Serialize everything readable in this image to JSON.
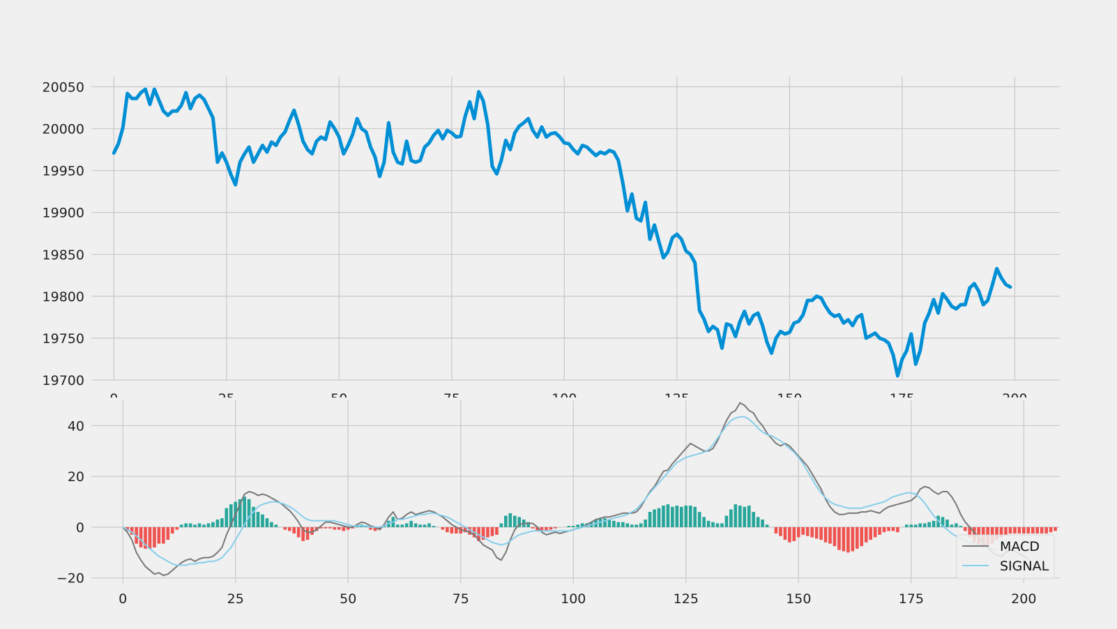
{
  "colors": {
    "background": "#f0f0f0",
    "grid": "#cbcbcb",
    "price_line": "#008fd5",
    "macd_line": "#777777",
    "signal_line": "#87ceeb",
    "hist_positive": "#26a69a",
    "hist_negative": "#ef5350"
  },
  "chart_data": [
    {
      "type": "line",
      "grid": true,
      "xlim": [
        -5,
        210
      ],
      "ylim": [
        19700,
        20062
      ],
      "xticks": [
        0,
        25,
        50,
        75,
        100,
        125,
        150,
        175,
        200
      ],
      "yticks": [
        19700,
        19750,
        19800,
        19850,
        19900,
        19950,
        20000,
        20050
      ],
      "series": [
        {
          "values": [
            19971,
            19982,
            20001,
            20042,
            20036,
            20036,
            20043,
            20047,
            20029,
            20047,
            20034,
            20021,
            20016,
            20021,
            20021,
            20028,
            20043,
            20024,
            20036,
            20040,
            20035,
            20024,
            20013,
            19960,
            19971,
            19960,
            19945,
            19933,
            19960,
            19970,
            19978,
            19960,
            19970,
            19980,
            19972,
            19984,
            19980,
            19990,
            19996,
            20010,
            20022,
            20005,
            19985,
            19975,
            19970,
            19985,
            19990,
            19987,
            20008,
            20000,
            19990,
            19970,
            19980,
            19993,
            20012,
            20000,
            19996,
            19978,
            19966,
            19943,
            19960,
            20007,
            19972,
            19960,
            19958,
            19985,
            19962,
            19960,
            19962,
            19978,
            19983,
            19992,
            19998,
            19988,
            19998,
            19995,
            19990,
            19991,
            20015,
            20032,
            20012,
            20044,
            20033,
            20005,
            19955,
            19946,
            19962,
            19986,
            19975,
            19995,
            20003,
            20007,
            20012,
            19998,
            19990,
            20002,
            19990,
            19994,
            19995,
            19990,
            19983,
            19982,
            19975,
            19970,
            19980,
            19978,
            19973,
            19968,
            19972,
            19970,
            19974,
            19972,
            19962,
            19935,
            19902,
            19922,
            19893,
            19890,
            19912,
            19868,
            19885,
            19865,
            19846,
            19853,
            19870,
            19874,
            19868,
            19854,
            19850,
            19840,
            19783,
            19773,
            19758,
            19764,
            19760,
            19738,
            19767,
            19765,
            19752,
            19770,
            19782,
            19767,
            19777,
            19780,
            19765,
            19745,
            19732,
            19750,
            19758,
            19755,
            19757,
            19768,
            19770,
            19778,
            19795,
            19795,
            19800,
            19798,
            19788,
            19780,
            19776,
            19778,
            19768,
            19772,
            19765,
            19775,
            19778,
            19750,
            19753,
            19756,
            19750,
            19748,
            19744,
            19730,
            19705,
            19725,
            19735,
            19755,
            19719,
            19735,
            19768,
            19780,
            19796,
            19780,
            19803,
            19796,
            19788,
            19785,
            19790,
            19790,
            19810,
            19815,
            19806,
            19790,
            19795,
            19813,
            19833,
            19822,
            19814,
            19811
          ]
        }
      ]
    },
    {
      "type": "bar",
      "grid": true,
      "legend_position": "bottom-right",
      "xlim": [
        -7,
        208
      ],
      "ylim": [
        -22,
        50
      ],
      "xticks": [
        0,
        25,
        50,
        75,
        100,
        125,
        150,
        175,
        200
      ],
      "xtick_labels": [
        "0",
        "25",
        "50",
        "75",
        "100",
        "125",
        "150",
        "175",
        "200"
      ],
      "yticks": [
        -20,
        0,
        20,
        40
      ],
      "ytick_labels": [
        "−20",
        "0",
        "20",
        "40"
      ],
      "series": [
        {
          "name": "MACD",
          "type": "line",
          "values": [
            0,
            -2,
            -5,
            -10,
            -13,
            -15.5,
            -17,
            -18.5,
            -18,
            -19,
            -18.5,
            -17,
            -15.5,
            -14,
            -13,
            -12.5,
            -13.5,
            -12.5,
            -12,
            -12,
            -11.5,
            -10,
            -8,
            -3,
            1,
            5,
            9,
            13,
            14,
            13.5,
            12.5,
            13,
            12.5,
            11.5,
            10.5,
            9.5,
            8,
            6.5,
            4.5,
            2,
            -1,
            -2,
            -2,
            -1,
            0.5,
            2,
            2,
            1.5,
            1,
            0.5,
            0,
            0,
            1,
            2,
            1.5,
            0.5,
            0,
            -1,
            1,
            4,
            6,
            3,
            3.5,
            5,
            6,
            5,
            5.5,
            6,
            6.5,
            6,
            5,
            4,
            2.5,
            1,
            0,
            -1,
            -1.5,
            -2,
            -3,
            -5,
            -7,
            -8,
            -9,
            -12,
            -13,
            -10,
            -5,
            -1,
            1,
            1.5,
            1.5,
            1.5,
            0,
            -2,
            -3,
            -2.5,
            -2,
            -2.5,
            -2,
            -1.5,
            -1,
            -0.5,
            0,
            1,
            2,
            3,
            3.5,
            4,
            4,
            4.5,
            5,
            5.5,
            5.5,
            5.5,
            6,
            8,
            11,
            14,
            16,
            19,
            22,
            22.5,
            25,
            27,
            29,
            31,
            33,
            32,
            31,
            30,
            30,
            31,
            34,
            38,
            42,
            45,
            46,
            49,
            48,
            46,
            45,
            42,
            40,
            37,
            35,
            33,
            32,
            33,
            32,
            30,
            28,
            26,
            24,
            21,
            18,
            15,
            11,
            8,
            6,
            5,
            5,
            5.5,
            5.5,
            5.5,
            6,
            6,
            6.5,
            6,
            5.5,
            7,
            8,
            8.5,
            9,
            9.5,
            10,
            10.5,
            12,
            15,
            16,
            15.5,
            14,
            13,
            14,
            14,
            12,
            9,
            5,
            2,
            0,
            -2,
            -4,
            -6,
            -8,
            -10,
            -11,
            -11.5,
            -10,
            -9,
            -9.5,
            -10.5,
            -11.5,
            -12.5
          ]
        },
        {
          "name": "SIGNAL",
          "type": "line",
          "values": [
            0,
            -1,
            -2,
            -3.5,
            -5,
            -7,
            -8.5,
            -10,
            -11.5,
            -12.5,
            -13.5,
            -14.5,
            -15,
            -15,
            -15,
            -14.5,
            -14.5,
            -14,
            -14,
            -13.5,
            -13.5,
            -13,
            -12,
            -10,
            -8,
            -5,
            -2,
            1,
            4,
            6,
            8,
            9,
            9.5,
            10,
            10,
            9.5,
            9,
            8,
            7,
            5.5,
            4,
            3,
            2.5,
            2.5,
            2.5,
            2.5,
            2.5,
            2.5,
            2,
            1.5,
            1,
            0.5,
            0.5,
            0.5,
            0.5,
            0,
            0,
            0,
            0.5,
            1.5,
            2,
            3,
            3,
            3.5,
            4,
            4.5,
            5,
            5,
            5.5,
            5.5,
            5,
            4.5,
            4,
            3,
            2,
            1,
            0,
            -1,
            -2,
            -3,
            -4,
            -5,
            -6,
            -6.5,
            -7,
            -6.5,
            -5.5,
            -4,
            -3,
            -2.5,
            -2,
            -1.5,
            -1.5,
            -1.5,
            -1.5,
            -1.5,
            -1.5,
            -1.5,
            -1.5,
            -1.5,
            -1,
            -0.5,
            0,
            0.5,
            1,
            1.5,
            2,
            2.5,
            3,
            3.5,
            4,
            4.5,
            5,
            6,
            7,
            9,
            11,
            13.5,
            15.5,
            17.5,
            19.5,
            21.5,
            23.5,
            25.5,
            26.5,
            27.5,
            28,
            28.5,
            29,
            29.5,
            30.5,
            32.5,
            35,
            37.5,
            40,
            42,
            43,
            43.5,
            43.5,
            42.5,
            41,
            39,
            37.5,
            36.5,
            36,
            35,
            34,
            32.5,
            31,
            29.5,
            27.5,
            25,
            22,
            19,
            16,
            13.5,
            11.5,
            10,
            9,
            8.5,
            8,
            7.5,
            7.5,
            7.5,
            7.5,
            8,
            8.5,
            9,
            9.5,
            10,
            11,
            12,
            12.5,
            13,
            13.5,
            13.5,
            13,
            11.5,
            9.5,
            7,
            4.5,
            2.5,
            0.5,
            -1,
            -2.5,
            -3.5,
            -4.5,
            -5.5,
            -6,
            -6.5,
            -7,
            -7.5,
            -8,
            -8.5,
            -9
          ]
        },
        {
          "name": "histogram",
          "type": "bar",
          "values": [
            0,
            -1.5,
            -3,
            -6.5,
            -8,
            -8.5,
            -8.5,
            -8,
            -6.5,
            -6.5,
            -5,
            -2.5,
            -1,
            1,
            1.5,
            1.5,
            1,
            1.5,
            1,
            1.5,
            2,
            3,
            3.5,
            7.5,
            9,
            10,
            11,
            12,
            11,
            8,
            6,
            5,
            3.5,
            2,
            1,
            0,
            -1,
            -1.5,
            -2.5,
            -4,
            -5.5,
            -5,
            -3,
            -1.5,
            -0.5,
            -0.5,
            -0.5,
            -1,
            -1,
            -1.5,
            -1,
            -0.5,
            0.5,
            1,
            0.5,
            -1,
            -1.5,
            -1,
            0.5,
            2.5,
            4,
            1,
            1,
            1.5,
            2.5,
            1.5,
            1,
            1,
            1.5,
            0.5,
            0,
            -1,
            -2,
            -2.5,
            -2.5,
            -2.5,
            -2,
            -3,
            -4,
            -5.5,
            -5,
            -4,
            -3.5,
            -3,
            1.5,
            4.5,
            5.5,
            4.5,
            4,
            3,
            2,
            -0.5,
            -1.5,
            -1.5,
            -1.5,
            -1,
            -0.5,
            0,
            0,
            0.5,
            0.5,
            1,
            1.5,
            1.5,
            2,
            3,
            3.5,
            3.5,
            3,
            2.5,
            2,
            2,
            1.5,
            1,
            1,
            1.5,
            3,
            6,
            7,
            7.5,
            8.5,
            9,
            8,
            8.5,
            8,
            8.5,
            8.5,
            8,
            6,
            4,
            2.5,
            2,
            1.5,
            1.5,
            4.5,
            7,
            9,
            8.5,
            8,
            8.5,
            6,
            4,
            3,
            1,
            0,
            -2.5,
            -3.5,
            -5,
            -6,
            -5.5,
            -4,
            -3,
            -3.5,
            -4,
            -4.5,
            -5,
            -6,
            -6.5,
            -7.5,
            -9,
            -9.5,
            -10,
            -9.5,
            -8.5,
            -7.5,
            -6,
            -5,
            -4,
            -3,
            -2,
            -1.5,
            -1.5,
            -2,
            0,
            1,
            1,
            1,
            1.5,
            1.5,
            2,
            2.5,
            4.5,
            4,
            3,
            1,
            1.5,
            0.5,
            -1.5,
            -4,
            -6,
            -7,
            -8,
            -8,
            -6.5,
            -5,
            -4,
            -3,
            -2.5,
            -2.5,
            -2.5,
            -2.5,
            -2.5,
            -2.5,
            -2.5,
            -2.5,
            -2.5,
            -2,
            -1.5
          ]
        }
      ]
    }
  ]
}
